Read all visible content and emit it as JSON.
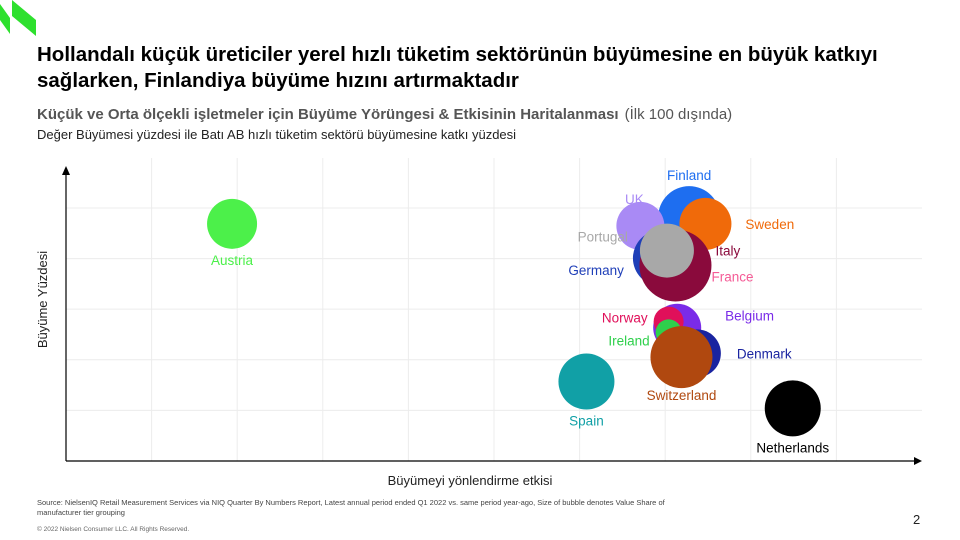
{
  "headline": "Hollandalı küçük üreticiler yerel hızlı tüketim sektörünün büyümesine en büyük katkıyı sağlarken, Finlandiya büyüme hızını artırmaktadır",
  "subtitle_bold": "Küçük ve Orta ölçekli işletmeler için Büyüme Yörüngesi & Etkisinin Haritalanması",
  "subtitle_note": "(İlk 100 dışında)",
  "subtitle2": "Değer Büyümesi yüzdesi ile Batı AB hızlı tüketim sektörü büyümesine katkı yüzdesi",
  "footnote": "Source: NielsenIQ Retail Measurement Services via NIQ Quarter By Numbers Report, Latest annual period ended Q1 2022 vs. same period year-ago, Size of bubble denotes Value Share of manufacturer tier grouping",
  "copyright": "© 2022 Nielsen Consumer LLC. All Rights Reserved.",
  "page_number": "2",
  "colors": {
    "logo": "#2ee02e"
  },
  "chart_data": {
    "type": "scatter",
    "xlabel": "Büyümeyi yönlendirme etkisi",
    "ylabel": "Büyüme Yüzdesi",
    "xlim": [
      0,
      100
    ],
    "ylim": [
      0,
      100
    ],
    "grid": true,
    "legend": "none",
    "series": [
      {
        "name": "Austria",
        "x": 19.4,
        "y": 81.5,
        "size": 25,
        "color": "#4cf04a",
        "label_pos": "below"
      },
      {
        "name": "Finland",
        "x": 72.8,
        "y": 83.8,
        "size": 31,
        "color": "#1e6ef0",
        "label_pos": "above"
      },
      {
        "name": "UK",
        "x": 67.1,
        "y": 80.8,
        "size": 24,
        "color": "#a98af5",
        "label_pos": "above"
      },
      {
        "name": "Sweden",
        "x": 74.7,
        "y": 81.5,
        "size": 26,
        "color": "#f06a0a",
        "label_pos": "right"
      },
      {
        "name": "Germany",
        "x": 69.5,
        "y": 69.7,
        "size": 28,
        "color": "#1f3fb8",
        "label_pos": "left"
      },
      {
        "name": "France",
        "x": 71.9,
        "y": 65.5,
        "size": 26,
        "color": "#f55b96",
        "label_pos": "right"
      },
      {
        "name": "Italy",
        "x": 71.2,
        "y": 67.2,
        "size": 36,
        "color": "#8a0a3c",
        "label_pos": "right"
      },
      {
        "name": "Portugal",
        "x": 70.2,
        "y": 72.3,
        "size": 27,
        "color": "#a8a8a8",
        "label_pos": "left"
      },
      {
        "name": "Belgium",
        "x": 71.4,
        "y": 45.8,
        "size": 24,
        "color": "#7a2be8",
        "label_pos": "right"
      },
      {
        "name": "Norway",
        "x": 70.4,
        "y": 47.9,
        "size": 15,
        "color": "#e0105a",
        "label_pos": "left"
      },
      {
        "name": "Ireland",
        "x": 70.4,
        "y": 44.2,
        "size": 13,
        "color": "#2fd04c",
        "label_pos": "left"
      },
      {
        "name": "Denmark",
        "x": 73.7,
        "y": 37.0,
        "size": 24,
        "color": "#1a24a0",
        "label_pos": "right"
      },
      {
        "name": "Switzerland",
        "x": 71.9,
        "y": 35.7,
        "size": 31,
        "color": "#b0480f",
        "label_pos": "below"
      },
      {
        "name": "Spain",
        "x": 60.8,
        "y": 27.3,
        "size": 28,
        "color": "#11a0a6",
        "label_pos": "below"
      },
      {
        "name": "Netherlands",
        "x": 84.9,
        "y": 18.1,
        "size": 28,
        "color": "#000000",
        "label_pos": "below"
      }
    ]
  }
}
